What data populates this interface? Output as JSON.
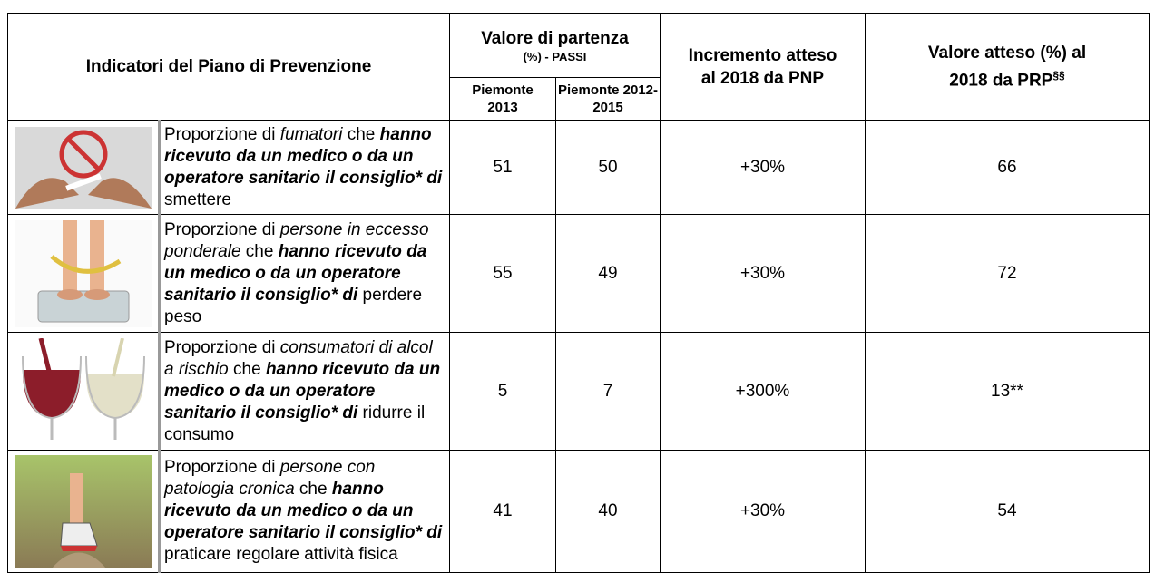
{
  "header": {
    "indicators": "Indicatori del Piano di Prevenzione",
    "baseline": "Valore di partenza",
    "baseline_sub": "(%) - PASSI",
    "col_2013": "Piemonte 2013",
    "col_2012_2015": "Piemonte 2012-2015",
    "increment": "Incremento atteso al 2018 da PNP",
    "expected": "Valore atteso (%) al 2018 da PRP",
    "expected_sup": "§§"
  },
  "table": {
    "rows": [
      {
        "description": [
          {
            "text": "Proporzione di ",
            "style": "normal"
          },
          {
            "text": "fumatori",
            "style": "italic"
          },
          {
            "text": " che ",
            "style": "normal"
          },
          {
            "text": "hanno ricevuto da un medico o da un operatore sanitario il consiglio* di",
            "style": "bold-italic"
          },
          {
            "text": " smettere",
            "style": "normal"
          }
        ],
        "piemonte_2013": 51,
        "piemonte_2012_2015": 50,
        "increment": "+30%",
        "expected": 66
      },
      {
        "description": [
          {
            "text": "Proporzione di ",
            "style": "normal"
          },
          {
            "text": "persone in eccesso ponderale",
            "style": "italic"
          },
          {
            "text": " che ",
            "style": "normal"
          },
          {
            "text": "hanno ricevuto da un medico o da un operatore sanitario il consiglio* di",
            "style": "bold-italic"
          },
          {
            "text": " perdere peso",
            "style": "normal"
          }
        ],
        "piemonte_2013": 55,
        "piemonte_2012_2015": 49,
        "increment": "+30%",
        "expected": 72
      },
      {
        "description": [
          {
            "text": "Proporzione di ",
            "style": "normal"
          },
          {
            "text": "consumatori di alcol a rischio",
            "style": "italic"
          },
          {
            "text": " che ",
            "style": "normal"
          },
          {
            "text": "hanno ricevuto da un medico o da un operatore sanitario il consiglio* di",
            "style": "bold-italic"
          },
          {
            "text": " ridurre il consumo",
            "style": "normal"
          }
        ],
        "piemonte_2013": 5,
        "piemonte_2012_2015": 7,
        "increment": "+300%",
        "expected": "13**"
      },
      {
        "description": [
          {
            "text": "Proporzione di ",
            "style": "normal"
          },
          {
            "text": "persone con patologia cronica",
            "style": "italic"
          },
          {
            "text": " che ",
            "style": "normal"
          },
          {
            "text": "hanno ricevuto da un medico o da un operatore sanitario il consiglio* di",
            "style": "bold-italic"
          },
          {
            "text": " praticare regolare attività fisica",
            "style": "normal"
          }
        ],
        "piemonte_2013": 41,
        "piemonte_2012_2015": 40,
        "increment": "+30%",
        "expected": 54
      }
    ]
  }
}
